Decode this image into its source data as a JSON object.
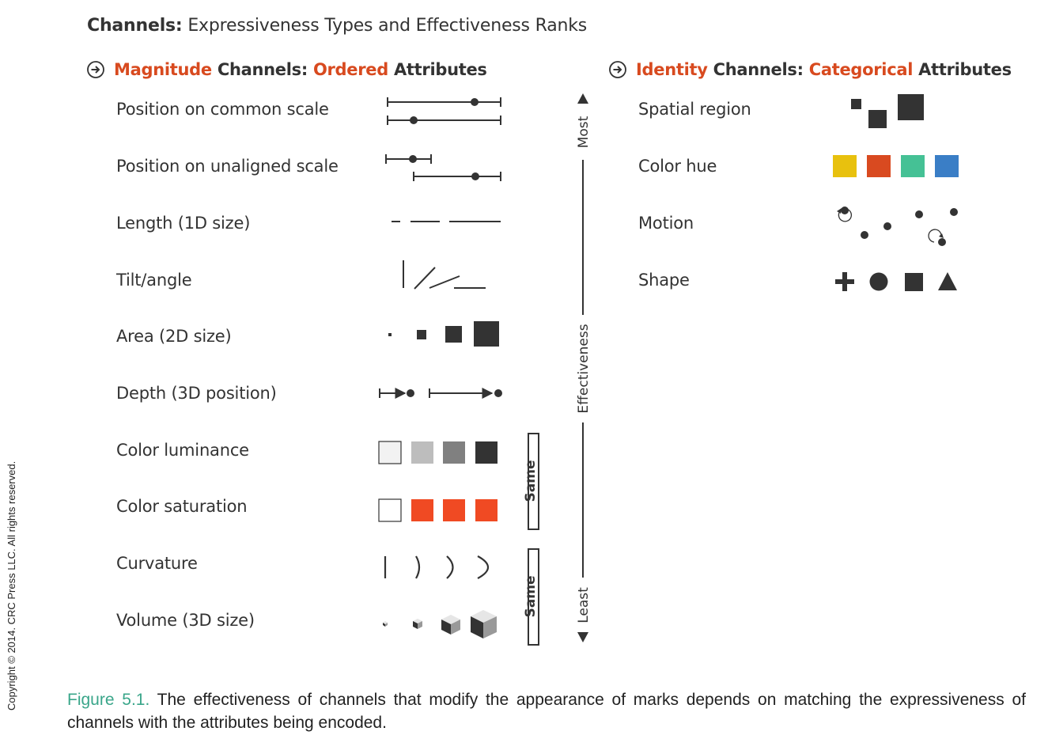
{
  "title": {
    "bold": "Channels:",
    "rest": "Expressiveness Types and Effectiveness Ranks"
  },
  "magnitude": {
    "head_a": "Magnitude",
    "head_b": "Channels:",
    "head_c": "Ordered",
    "head_d": "Attributes",
    "rows": [
      "Position on common scale",
      "Position on unaligned scale",
      "Length (1D size)",
      "Tilt/angle",
      "Area (2D size)",
      "Depth (3D position)",
      "Color luminance",
      "Color saturation",
      "Curvature",
      "Volume (3D size)"
    ]
  },
  "identity": {
    "head_a": "Identity",
    "head_b": "Channels:",
    "head_c": "Categorical",
    "head_d": "Attributes",
    "rows": [
      "Spatial region",
      "Color hue",
      "Motion",
      "Shape"
    ]
  },
  "effectiveness": {
    "most": "Most",
    "label": "Effectiveness",
    "least": "Least"
  },
  "same_label": "Same",
  "colors": {
    "accent": "#d84a1f",
    "dark": "#333333",
    "hue_yellow": "#e8c10e",
    "hue_red": "#d94a20",
    "hue_green": "#45c195",
    "hue_blue": "#3a7ec6",
    "saturation_red": "#f04a23",
    "caption_green": "#3aa68a"
  },
  "caption": {
    "fig": "Figure 5.1.",
    "text": "The effectiveness of channels that modify the appearance of marks depends on matching the expressiveness of channels with the attributes being encoded."
  },
  "copyright": "Copyright © 2014. CRC Press LLC. All rights reserved."
}
